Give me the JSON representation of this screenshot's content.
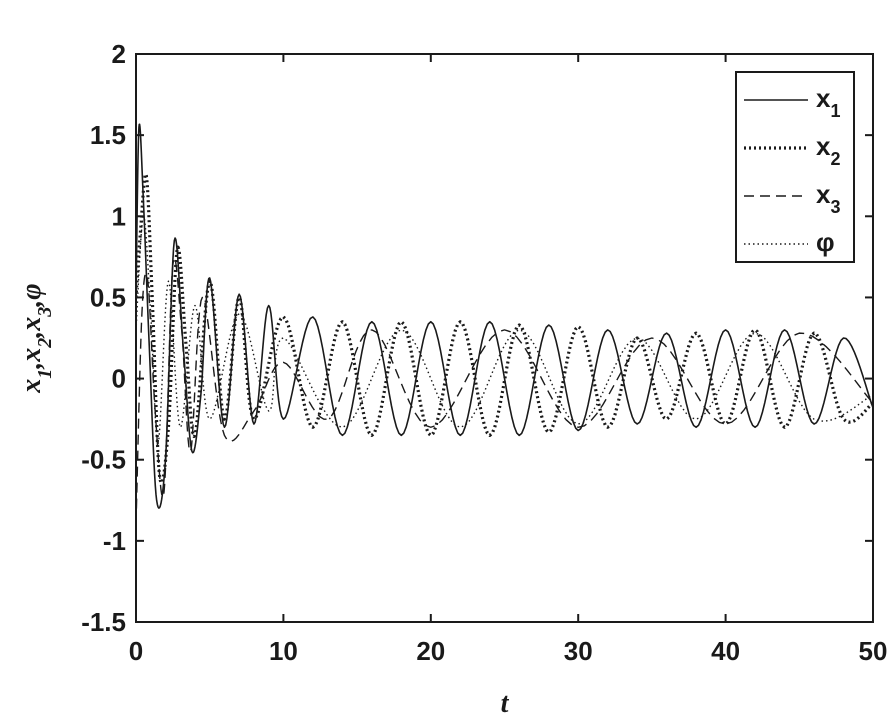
{
  "chart_data": {
    "type": "line",
    "xlabel": "t",
    "ylabel": "x1,x2,x3,φ",
    "ylabel_parts": [
      {
        "main": "x",
        "sub": "1"
      },
      {
        "main": ",x",
        "sub": "2"
      },
      {
        "main": ",x",
        "sub": "3"
      },
      {
        "main": ",φ",
        "sub": ""
      }
    ],
    "xlim": [
      0,
      50
    ],
    "ylim": [
      -1.5,
      2
    ],
    "xticks": [
      "0",
      "10",
      "20",
      "30",
      "40",
      "50"
    ],
    "yticks": [
      "-1.5",
      "-1",
      "-0.5",
      "0",
      "0.5",
      "1",
      "1.5",
      "2"
    ],
    "grid": false,
    "legend_position": "top-right",
    "series": [
      {
        "name": "x1",
        "base": "x",
        "sub": "1",
        "style": "solid",
        "x": [
          0,
          0.2,
          0.5,
          0.9,
          1.4,
          2.0,
          2.6,
          3.2,
          3.8,
          4.4,
          5.0,
          6.0,
          7.0,
          8.0,
          9.0,
          10,
          12,
          14,
          16,
          18,
          20,
          22,
          24,
          26,
          28,
          30,
          32,
          34,
          36,
          38,
          40,
          42,
          44,
          46,
          48,
          50
        ],
        "y": [
          0.5,
          1.55,
          1.1,
          0.2,
          -0.75,
          -0.5,
          0.85,
          0.2,
          -0.45,
          -0.1,
          0.62,
          -0.3,
          0.52,
          -0.28,
          0.45,
          -0.25,
          0.38,
          -0.35,
          0.35,
          -0.35,
          0.35,
          -0.35,
          0.35,
          -0.35,
          0.33,
          -0.32,
          0.3,
          -0.28,
          0.28,
          -0.3,
          0.3,
          -0.3,
          0.3,
          -0.28,
          0.25,
          -0.18
        ]
      },
      {
        "name": "x2",
        "base": "x",
        "sub": "2",
        "style": "dotted-marker",
        "x": [
          0,
          0.3,
          0.7,
          1.1,
          1.6,
          2.2,
          2.8,
          3.4,
          4.0,
          5.0,
          6.0,
          7.0,
          8.0,
          10,
          12,
          14,
          16,
          18,
          20,
          22,
          24,
          26,
          28,
          30,
          32,
          34,
          36,
          38,
          40,
          42,
          44,
          46,
          48,
          50
        ],
        "y": [
          0.5,
          0.9,
          1.25,
          0.5,
          -0.6,
          -0.3,
          0.8,
          0.2,
          -0.35,
          0.6,
          -0.25,
          0.5,
          -0.25,
          0.38,
          -0.3,
          0.35,
          -0.35,
          0.35,
          -0.35,
          0.35,
          -0.35,
          0.33,
          -0.33,
          0.32,
          -0.3,
          0.25,
          -0.25,
          0.28,
          -0.28,
          0.3,
          -0.3,
          0.28,
          -0.25,
          -0.15
        ]
      },
      {
        "name": "x3",
        "base": "x",
        "sub": "3",
        "style": "dashed",
        "x": [
          0,
          0.4,
          0.8,
          1.3,
          1.9,
          2.5,
          3.1,
          3.7,
          4.5,
          6.0,
          8.0,
          10,
          13,
          16,
          20,
          25,
          30,
          35,
          40,
          45,
          50
        ],
        "y": [
          -0.9,
          0.4,
          0.6,
          -0.2,
          -0.7,
          0.7,
          0.3,
          -0.45,
          0.5,
          -0.35,
          -0.2,
          0.1,
          -0.25,
          0.3,
          -0.3,
          0.3,
          -0.3,
          0.25,
          -0.28,
          0.28,
          -0.15
        ]
      },
      {
        "name": "φ",
        "base": "φ",
        "sub": "",
        "style": "dotted",
        "x": [
          0,
          0.5,
          1.0,
          1.5,
          2.2,
          3.0,
          4.0,
          5.0,
          7.0,
          9.0,
          10,
          14,
          18,
          22,
          26,
          30,
          34,
          38,
          42,
          46,
          50
        ],
        "y": [
          0.3,
          1.0,
          0.4,
          -0.4,
          0.6,
          -0.3,
          0.45,
          -0.25,
          0.4,
          -0.2,
          0.25,
          -0.3,
          0.3,
          -0.3,
          0.3,
          -0.28,
          0.25,
          -0.25,
          0.28,
          -0.25,
          -0.1
        ]
      }
    ]
  }
}
